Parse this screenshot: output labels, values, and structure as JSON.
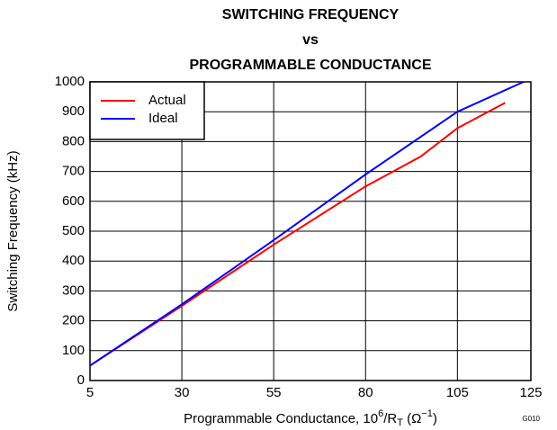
{
  "chart_data": {
    "type": "line",
    "title": [
      "SWITCHING FREQUENCY",
      "vs",
      "PROGRAMMABLE CONDUCTANCE"
    ],
    "x_label": [
      "Programmable Conductance, 10",
      "6",
      "/R",
      "T",
      " (Ω",
      "−1",
      ")"
    ],
    "y_label": "Switching Frequency (kHz)",
    "annotation": "G010",
    "xlim": [
      5,
      125
    ],
    "xticks": [
      5,
      30,
      55,
      80,
      105,
      125
    ],
    "ylim": [
      0,
      1000
    ],
    "yticks": [
      0,
      100,
      200,
      300,
      400,
      500,
      600,
      700,
      800,
      900,
      1000
    ],
    "grid": true,
    "legend": "upper left",
    "series": [
      {
        "name": "Actual",
        "color": "#ff0000",
        "x": [
          5,
          30,
          55,
          80,
          95,
          105,
          118
        ],
        "values": [
          50,
          250,
          455,
          650,
          750,
          845,
          930
        ]
      },
      {
        "name": "Ideal",
        "color": "#0000ff",
        "x": [
          5,
          30,
          55,
          80,
          105,
          123
        ],
        "values": [
          50,
          255,
          470,
          690,
          900,
          1000
        ]
      }
    ]
  }
}
